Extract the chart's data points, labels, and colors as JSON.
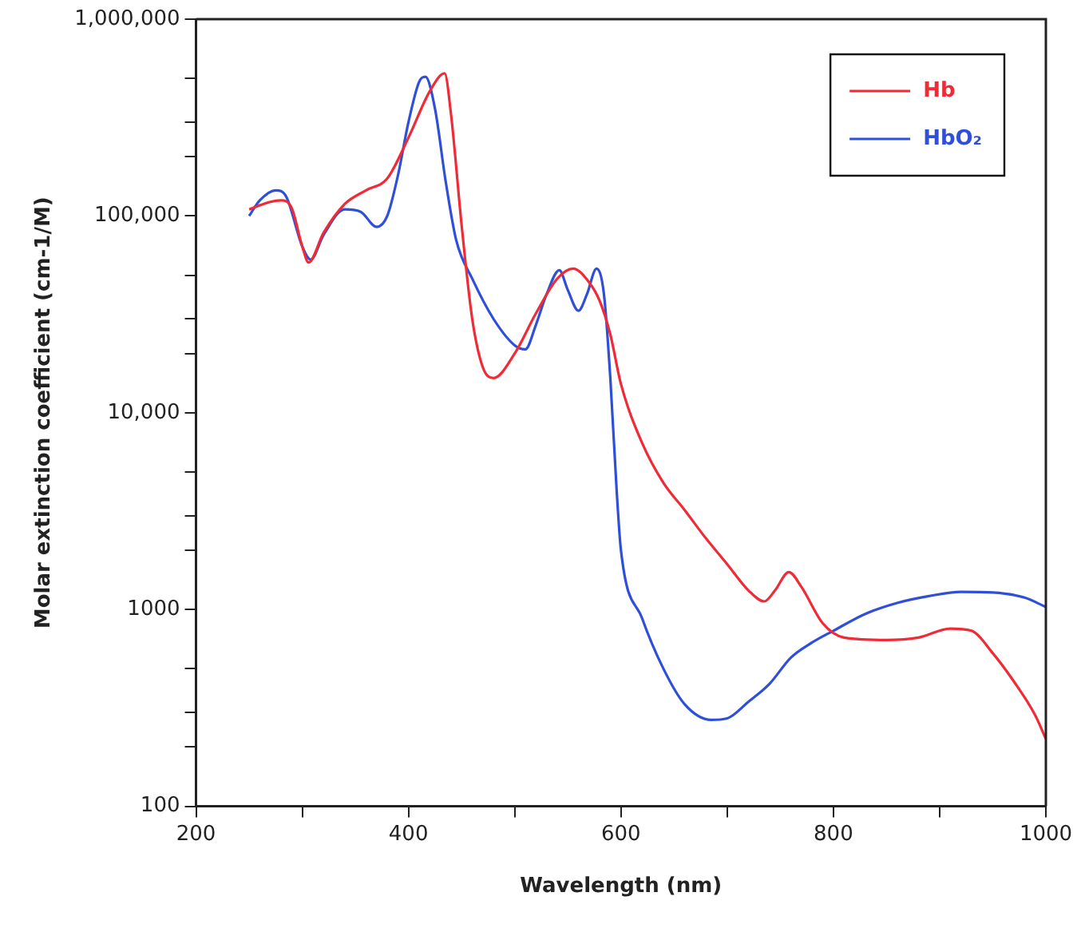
{
  "chart_data": {
    "type": "line",
    "xlabel": "Wavelength (nm)",
    "ylabel": "Molar extinction coefficient (cm-1/M)",
    "log": "y",
    "xlim": [
      200,
      1000
    ],
    "xticks": [
      200,
      {
        "value": 300,
        "label": null
      },
      400,
      {
        "value": 500,
        "label": null
      },
      600,
      {
        "value": 700,
        "label": null
      },
      800,
      {
        "value": 900,
        "label": null
      },
      1000
    ],
    "ylim": [
      100,
      1000000
    ],
    "yticks": [
      100,
      {
        "value": 200,
        "label": null
      },
      {
        "value": 300,
        "label": null
      },
      {
        "value": 500,
        "label": null
      },
      1000,
      {
        "value": 2000,
        "label": null
      },
      {
        "value": 3000,
        "label": null
      },
      {
        "value": 5000,
        "label": null
      },
      {
        "value": 10000,
        "label": "10,000"
      },
      {
        "value": 20000,
        "label": null
      },
      {
        "value": 30000,
        "label": null
      },
      {
        "value": 50000,
        "label": null
      },
      {
        "value": 100000,
        "label": "100,000"
      },
      {
        "value": 200000,
        "label": null
      },
      {
        "value": 300000,
        "label": null
      },
      {
        "value": 500000,
        "label": null
      },
      {
        "value": 1000000,
        "label": "1,000,000"
      }
    ],
    "grid": false,
    "legend": "top right",
    "series": [
      {
        "name": "Hb",
        "color": "#ee2b36",
        "x": [
          250,
          270,
          280,
          290,
          300,
          306,
          320,
          340,
          360,
          380,
          400,
          420,
          434,
          440,
          450,
          460,
          470,
          480,
          500,
          520,
          540,
          555,
          570,
          580,
          590,
          600,
          620,
          640,
          660,
          680,
          700,
          720,
          735,
          745,
          758,
          770,
          790,
          810,
          850,
          880,
          910,
          930,
          950,
          970,
          990,
          1000
        ],
        "values": [
          108000,
          118000,
          120000,
          110000,
          70000,
          58000,
          82000,
          115000,
          135000,
          155000,
          250000,
          430000,
          530000,
          330000,
          90000,
          30000,
          17000,
          15000,
          20000,
          32000,
          48000,
          54000,
          46000,
          37000,
          25000,
          14000,
          7000,
          4400,
          3200,
          2300,
          1700,
          1250,
          1100,
          1250,
          1550,
          1300,
          850,
          720,
          700,
          720,
          800,
          780,
          600,
          430,
          290,
          220
        ]
      },
      {
        "name": "HbO₂",
        "color": "#2f4fd8",
        "x": [
          250,
          260,
          275,
          285,
          300,
          308,
          320,
          340,
          355,
          370,
          380,
          390,
          400,
          410,
          416,
          425,
          435,
          445,
          460,
          480,
          500,
          510,
          520,
          530,
          542,
          550,
          560,
          568,
          577,
          584,
          590,
          596,
          600,
          620,
          640,
          660,
          685,
          700,
          720,
          740,
          760,
          780,
          800,
          830,
          860,
          890,
          920,
          950,
          980,
          1000
        ],
        "values": [
          100000,
          120000,
          135000,
          125000,
          70000,
          60000,
          80000,
          108000,
          105000,
          88000,
          100000,
          160000,
          300000,
          480000,
          510000,
          350000,
          150000,
          75000,
          48000,
          30000,
          22000,
          21000,
          28000,
          40000,
          53000,
          42000,
          33000,
          40000,
          54000,
          40000,
          15000,
          4000,
          2000,
          900,
          500,
          330,
          275,
          280,
          340,
          420,
          570,
          680,
          780,
          950,
          1080,
          1170,
          1230,
          1220,
          1150,
          1030
        ]
      }
    ]
  }
}
